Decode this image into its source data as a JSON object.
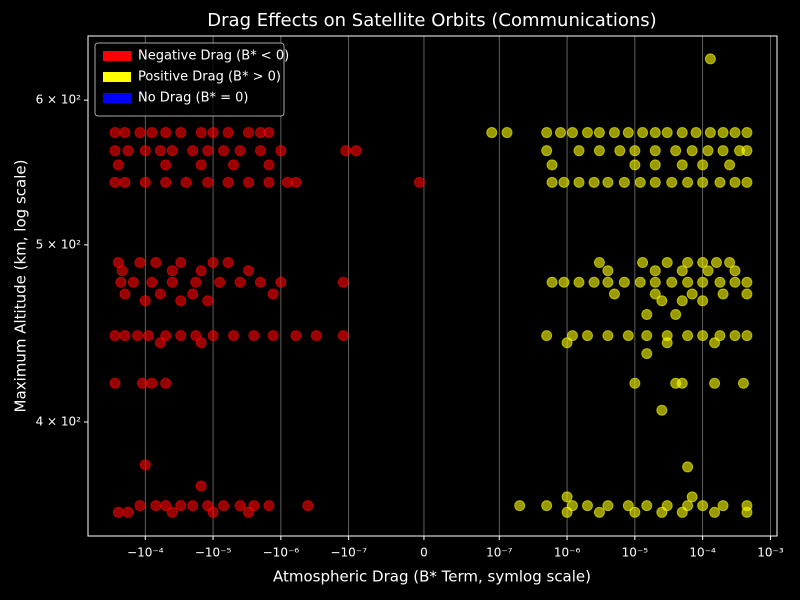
{
  "chart_data": {
    "type": "scatter",
    "title": "Drag Effects on Satellite Orbits (Communications)",
    "xlabel": "Atmospheric Drag (B* Term, symlog scale)",
    "ylabel": "Maximum Altitude (km, log scale)",
    "xscale": "symlog",
    "xlinthresh": 1e-07,
    "yscale": "log",
    "xlim": [
      -0.0007,
      0.00125
    ],
    "ylim": [
      346.5,
      650.5
    ],
    "xticks": [
      {
        "value": -0.0001,
        "label": "−10⁻⁴"
      },
      {
        "value": -1e-05,
        "label": "−10⁻⁵"
      },
      {
        "value": -1e-06,
        "label": "−10⁻⁶"
      },
      {
        "value": -1e-07,
        "label": "−10⁻⁷"
      },
      0,
      {
        "value": 1e-07,
        "label": "10⁻⁷"
      },
      {
        "value": 1e-06,
        "label": "10⁻⁶"
      },
      {
        "value": 1e-05,
        "label": "10⁻⁵"
      },
      {
        "value": 0.0001,
        "label": "10⁻⁴"
      },
      {
        "value": 0.001,
        "label": "10⁻³"
      }
    ],
    "yticks": [
      {
        "value": 400,
        "label": "4 × 10²"
      },
      {
        "value": 500,
        "label": "5 × 10²"
      },
      {
        "value": 600,
        "label": "6 × 10²"
      }
    ],
    "grid": "x",
    "legend": "upper left",
    "series": [
      {
        "name": "Negative Drag (B* < 0)",
        "color": "#ff0000",
        "x": [
          -0.00028,
          -0.0002,
          -0.00012,
          -8e-05,
          -5e-05,
          -3e-05,
          -1.5e-05,
          -1e-05,
          -6e-06,
          -3e-06,
          -2e-06,
          -1.5e-06,
          -0.00028,
          -0.00018,
          -0.0001,
          -6e-05,
          -4e-05,
          -2e-05,
          -1.2e-05,
          -7e-06,
          -4e-06,
          -2e-06,
          -1e-06,
          -1.1e-07,
          -9e-08,
          -0.00025,
          -5e-05,
          -1.5e-05,
          -5e-06,
          -1.5e-06,
          -0.00028,
          -0.0002,
          -0.0001,
          -5e-05,
          -2.5e-05,
          -1.2e-05,
          -6e-06,
          -3e-06,
          -1.5e-06,
          -8e-07,
          -6e-07,
          -6e-09,
          -0.00025,
          -0.00012,
          -7e-05,
          -3e-05,
          -1e-05,
          -6e-06,
          -0.00022,
          -4e-05,
          -1.5e-05,
          -3e-06,
          -0.00023,
          -0.00015,
          -8e-05,
          -4e-05,
          -1.8e-05,
          -8e-06,
          -4e-06,
          -2e-06,
          -1e-06,
          -1.2e-07,
          -0.0002,
          -6e-05,
          -2e-05,
          -1.3e-06,
          -0.0001,
          -3e-05,
          -1.2e-05,
          -0.00028,
          -0.0002,
          -0.00013,
          -9e-05,
          -5e-05,
          -3e-05,
          -1.8e-05,
          -1e-05,
          -5e-06,
          -2.5e-06,
          -1.3e-06,
          -6e-07,
          -3e-07,
          -1.2e-07,
          -6e-05,
          -1.5e-05,
          -0.00028,
          -0.00011,
          -8e-05,
          -5e-05,
          -0.0001,
          -1.5e-05,
          -0.00012,
          -7e-05,
          -5e-05,
          -3e-05,
          -2e-05,
          -1.2e-05,
          -7e-06,
          -4e-06,
          -2.5e-06,
          -1.5e-06,
          -4e-07,
          -0.00025,
          -0.00018,
          -4e-05,
          -1e-05,
          -3e-06
        ],
        "y": [
          576,
          576,
          576,
          576,
          576,
          576,
          576,
          576,
          576,
          576,
          576,
          576,
          563,
          563,
          563,
          563,
          563,
          563,
          563,
          563,
          563,
          563,
          563,
          563,
          563,
          553,
          553,
          553,
          553,
          553,
          541,
          541,
          541,
          541,
          541,
          541,
          541,
          541,
          541,
          541,
          541,
          541,
          489,
          489,
          489,
          489,
          489,
          489,
          484,
          484,
          484,
          484,
          477,
          477,
          477,
          477,
          477,
          477,
          477,
          477,
          477,
          477,
          470,
          470,
          470,
          470,
          466,
          466,
          466,
          446,
          446,
          446,
          446,
          446,
          446,
          446,
          446,
          446,
          446,
          446,
          446,
          446,
          446,
          442,
          442,
          420,
          420,
          420,
          420,
          379,
          369,
          360,
          360,
          360,
          360,
          360,
          360,
          360,
          360,
          360,
          360,
          360,
          357,
          357,
          357,
          357,
          357
        ]
      },
      {
        "name": "Positive Drag (B* > 0)",
        "color": "#ffff00",
        "x": [
          0.00013,
          9e-08,
          1.3e-07,
          5e-07,
          8e-07,
          1.2e-06,
          2e-06,
          3e-06,
          5e-06,
          8e-06,
          1.3e-05,
          2e-05,
          3e-05,
          5e-05,
          8e-05,
          0.00013,
          0.0002,
          0.0003,
          0.00045,
          5e-07,
          1.5e-06,
          3e-06,
          6e-06,
          1e-05,
          2e-05,
          4e-05,
          7e-05,
          0.00012,
          0.0002,
          0.00035,
          0.00045,
          6e-07,
          1e-05,
          2e-05,
          5e-05,
          0.0001,
          0.00025,
          6e-07,
          9e-07,
          1.5e-06,
          2.5e-06,
          4e-06,
          7e-06,
          1.2e-05,
          2e-05,
          3.5e-05,
          6e-05,
          0.0001,
          0.00018,
          0.0003,
          0.00045,
          3e-06,
          1.3e-05,
          3e-05,
          6e-05,
          0.0001,
          0.00016,
          0.00025,
          4e-06,
          2e-05,
          5e-05,
          0.00012,
          0.0003,
          6e-07,
          9e-07,
          1.5e-06,
          2.5e-06,
          4e-06,
          7e-06,
          1.2e-05,
          2e-05,
          3.5e-05,
          6e-05,
          0.0001,
          0.00018,
          0.0003,
          0.00045,
          5e-06,
          2e-05,
          7e-05,
          0.0002,
          0.00045,
          2.5e-05,
          5e-05,
          0.0001,
          1.5e-05,
          4e-05,
          5e-07,
          1.2e-06,
          2e-06,
          4e-06,
          8e-06,
          1.5e-05,
          3e-05,
          6e-05,
          0.0001,
          0.00018,
          0.0003,
          0.00045,
          1e-06,
          3e-05,
          0.00015,
          1.5e-05,
          1e-05,
          4e-05,
          5e-05,
          0.00015,
          0.0004,
          2.5e-05,
          6e-05,
          1e-06,
          7e-05,
          2e-07,
          5e-07,
          1.2e-06,
          2e-06,
          4e-06,
          8e-06,
          1.5e-05,
          3e-05,
          6e-05,
          0.0001,
          0.0002,
          0.00045,
          1e-06,
          3e-06,
          1e-05,
          2.5e-05,
          5e-05,
          0.00015,
          0.00045
        ],
        "y": [
          632,
          576,
          576,
          576,
          576,
          576,
          576,
          576,
          576,
          576,
          576,
          576,
          576,
          576,
          576,
          576,
          576,
          576,
          576,
          563,
          563,
          563,
          563,
          563,
          563,
          563,
          563,
          563,
          563,
          563,
          563,
          553,
          553,
          553,
          553,
          553,
          553,
          541,
          541,
          541,
          541,
          541,
          541,
          541,
          541,
          541,
          541,
          541,
          541,
          541,
          541,
          489,
          489,
          489,
          489,
          489,
          489,
          489,
          484,
          484,
          484,
          484,
          484,
          477,
          477,
          477,
          477,
          477,
          477,
          477,
          477,
          477,
          477,
          477,
          477,
          477,
          477,
          470,
          470,
          470,
          470,
          470,
          466,
          466,
          466,
          458,
          458,
          446,
          446,
          446,
          446,
          446,
          446,
          446,
          446,
          446,
          446,
          446,
          446,
          442,
          442,
          442,
          436,
          420,
          420,
          420,
          420,
          420,
          406,
          378,
          364,
          364,
          360,
          360,
          360,
          360,
          360,
          360,
          360,
          360,
          360,
          360,
          360,
          360,
          357,
          357,
          357,
          357,
          357,
          357,
          357
        ]
      },
      {
        "name": "No Drag (B* = 0)",
        "color": "#0000ff",
        "x": [],
        "y": []
      }
    ]
  }
}
